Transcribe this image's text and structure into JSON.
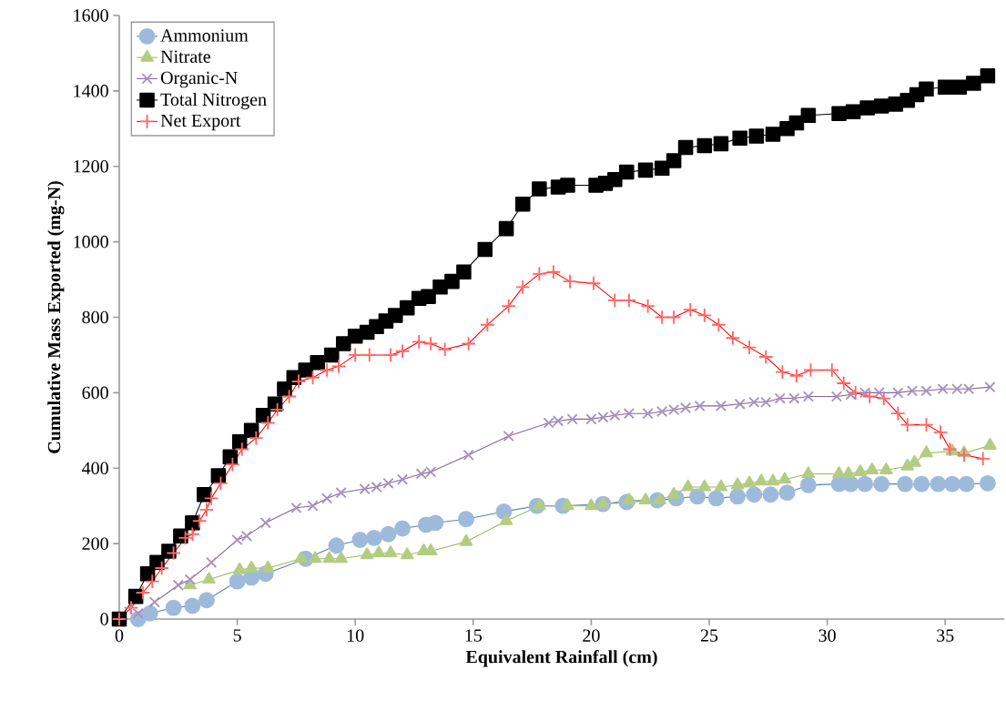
{
  "chart_data": {
    "type": "line",
    "xlabel": "Equivalent Rainfall (cm)",
    "ylabel": "Cumulative Mass Exported (mg-N)",
    "xlim": [
      0,
      37.5
    ],
    "ylim": [
      0,
      1600
    ],
    "xticks": [
      0,
      5,
      10,
      15,
      20,
      25,
      30,
      35
    ],
    "yticks": [
      0,
      200,
      400,
      600,
      800,
      1000,
      1200,
      1400,
      1600
    ],
    "grid": false,
    "legend": "top left",
    "line_style": "solid",
    "series": [
      {
        "name": "Ammonium",
        "color": "#4f81bd",
        "marker": "circle",
        "x": [
          0.8,
          1.3,
          2.3,
          3.1,
          3.7,
          5.0,
          5.6,
          6.2,
          7.9,
          9.2,
          10.2,
          10.8,
          11.4,
          12.0,
          13.0,
          13.4,
          14.7,
          16.3,
          17.7,
          18.8,
          20.5,
          21.5,
          22.8,
          23.6,
          24.5,
          25.3,
          26.2,
          26.9,
          27.6,
          28.3,
          29.2,
          30.5,
          31.0,
          31.6,
          32.3,
          33.3,
          34.0,
          34.7,
          35.3,
          35.9,
          36.8
        ],
        "values": [
          0,
          15,
          30,
          35,
          50,
          100,
          110,
          120,
          160,
          195,
          210,
          215,
          225,
          240,
          250,
          255,
          265,
          285,
          300,
          300,
          305,
          310,
          315,
          320,
          325,
          320,
          325,
          330,
          330,
          335,
          355,
          358,
          358,
          358,
          358,
          358,
          358,
          358,
          358,
          358,
          360
        ]
      },
      {
        "name": "Nitrate",
        "color": "#9bbb59",
        "marker": "triangle",
        "x": [
          3.0,
          3.8,
          5.1,
          5.6,
          6.3,
          7.7,
          8.3,
          8.9,
          9.4,
          10.5,
          11.0,
          11.5,
          12.2,
          12.9,
          13.2,
          14.7,
          16.4,
          17.8,
          19.0,
          20.0,
          20.5,
          21.6,
          22.3,
          22.9,
          23.5,
          24.1,
          24.8,
          25.5,
          26.2,
          26.7,
          27.2,
          27.7,
          28.2,
          29.2,
          30.5,
          30.9,
          31.4,
          31.9,
          32.5,
          33.4,
          33.7,
          34.2,
          35.3,
          35.8,
          36.9
        ],
        "values": [
          90,
          105,
          130,
          135,
          135,
          160,
          160,
          160,
          160,
          170,
          175,
          175,
          170,
          180,
          180,
          205,
          260,
          300,
          300,
          300,
          305,
          315,
          315,
          315,
          330,
          350,
          350,
          350,
          355,
          360,
          365,
          365,
          370,
          385,
          385,
          385,
          390,
          395,
          395,
          405,
          415,
          440,
          445,
          440,
          460
        ]
      },
      {
        "name": "Organic-N",
        "color": "#8064a2",
        "marker": "cross",
        "x": [
          0.8,
          1.5,
          2.5,
          3.0,
          3.9,
          5.0,
          5.4,
          6.2,
          7.5,
          8.2,
          8.8,
          9.4,
          10.4,
          10.9,
          11.4,
          12.0,
          12.8,
          13.2,
          14.8,
          16.5,
          18.2,
          18.6,
          19.2,
          20.0,
          20.5,
          21.0,
          21.6,
          22.4,
          23.0,
          23.5,
          24.0,
          24.6,
          25.5,
          26.3,
          26.9,
          27.4,
          28.0,
          28.6,
          29.2,
          30.4,
          31.0,
          31.6,
          32.2,
          33.0,
          33.6,
          34.2,
          34.9,
          35.5,
          36.0,
          36.9
        ],
        "values": [
          15,
          45,
          90,
          105,
          150,
          210,
          220,
          255,
          295,
          300,
          320,
          335,
          345,
          350,
          360,
          370,
          385,
          390,
          435,
          485,
          520,
          525,
          530,
          530,
          535,
          540,
          545,
          545,
          550,
          555,
          560,
          565,
          565,
          570,
          575,
          575,
          585,
          585,
          590,
          590,
          595,
          600,
          600,
          600,
          605,
          605,
          610,
          610,
          610,
          615
        ]
      },
      {
        "name": "Total Nitrogen",
        "color": "#000000",
        "marker": "square",
        "x": [
          0,
          0.7,
          1.2,
          1.6,
          2.1,
          2.6,
          3.1,
          3.6,
          4.2,
          4.7,
          5.1,
          5.6,
          6.1,
          6.6,
          7.0,
          7.4,
          7.9,
          8.4,
          9.0,
          9.5,
          10.0,
          10.5,
          10.9,
          11.3,
          11.7,
          12.2,
          12.7,
          13.1,
          13.6,
          14.1,
          14.6,
          15.5,
          16.4,
          17.1,
          17.8,
          18.6,
          19.0,
          20.2,
          20.6,
          21.0,
          21.5,
          22.3,
          23.0,
          23.5,
          24.0,
          24.8,
          25.5,
          26.3,
          27.0,
          27.7,
          28.3,
          28.7,
          29.2,
          30.5,
          31.1,
          31.7,
          32.3,
          32.9,
          33.4,
          33.8,
          34.2,
          35.0,
          35.6,
          36.2,
          36.8
        ],
        "values": [
          0,
          60,
          120,
          150,
          180,
          220,
          255,
          330,
          380,
          430,
          470,
          500,
          540,
          570,
          610,
          640,
          660,
          680,
          700,
          730,
          750,
          760,
          775,
          790,
          805,
          825,
          850,
          855,
          880,
          895,
          920,
          980,
          1035,
          1100,
          1140,
          1145,
          1150,
          1150,
          1155,
          1165,
          1185,
          1190,
          1195,
          1215,
          1250,
          1255,
          1260,
          1275,
          1280,
          1285,
          1300,
          1315,
          1335,
          1340,
          1345,
          1355,
          1360,
          1365,
          1375,
          1390,
          1405,
          1410,
          1410,
          1420,
          1440
        ]
      },
      {
        "name": "Net Export",
        "color": "#ff0000",
        "marker": "plus",
        "x": [
          0,
          0.5,
          1.0,
          1.4,
          1.8,
          2.3,
          2.8,
          3.1,
          3.4,
          3.7,
          3.9,
          4.3,
          4.8,
          5.2,
          5.8,
          6.3,
          6.7,
          7.2,
          7.6,
          8.2,
          8.8,
          9.3,
          10.0,
          10.6,
          11.5,
          12.0,
          12.7,
          13.2,
          13.8,
          14.8,
          15.6,
          16.5,
          17.1,
          17.8,
          18.4,
          19.1,
          20.1,
          21.0,
          21.6,
          22.4,
          23.0,
          23.5,
          24.2,
          24.8,
          25.4,
          26.0,
          26.7,
          27.4,
          28.1,
          28.7,
          29.3,
          30.2,
          30.7,
          31.2,
          31.8,
          32.4,
          33.0,
          33.4,
          34.2,
          34.8,
          35.2,
          35.8,
          36.6
        ],
        "values": [
          0,
          30,
          70,
          100,
          135,
          175,
          215,
          225,
          260,
          290,
          320,
          360,
          410,
          450,
          480,
          520,
          555,
          590,
          630,
          640,
          660,
          670,
          700,
          700,
          700,
          710,
          735,
          730,
          715,
          730,
          780,
          830,
          880,
          915,
          920,
          895,
          890,
          845,
          845,
          830,
          800,
          800,
          820,
          805,
          780,
          745,
          720,
          695,
          655,
          645,
          660,
          660,
          625,
          600,
          590,
          585,
          545,
          515,
          515,
          495,
          450,
          435,
          425
        ]
      }
    ]
  }
}
